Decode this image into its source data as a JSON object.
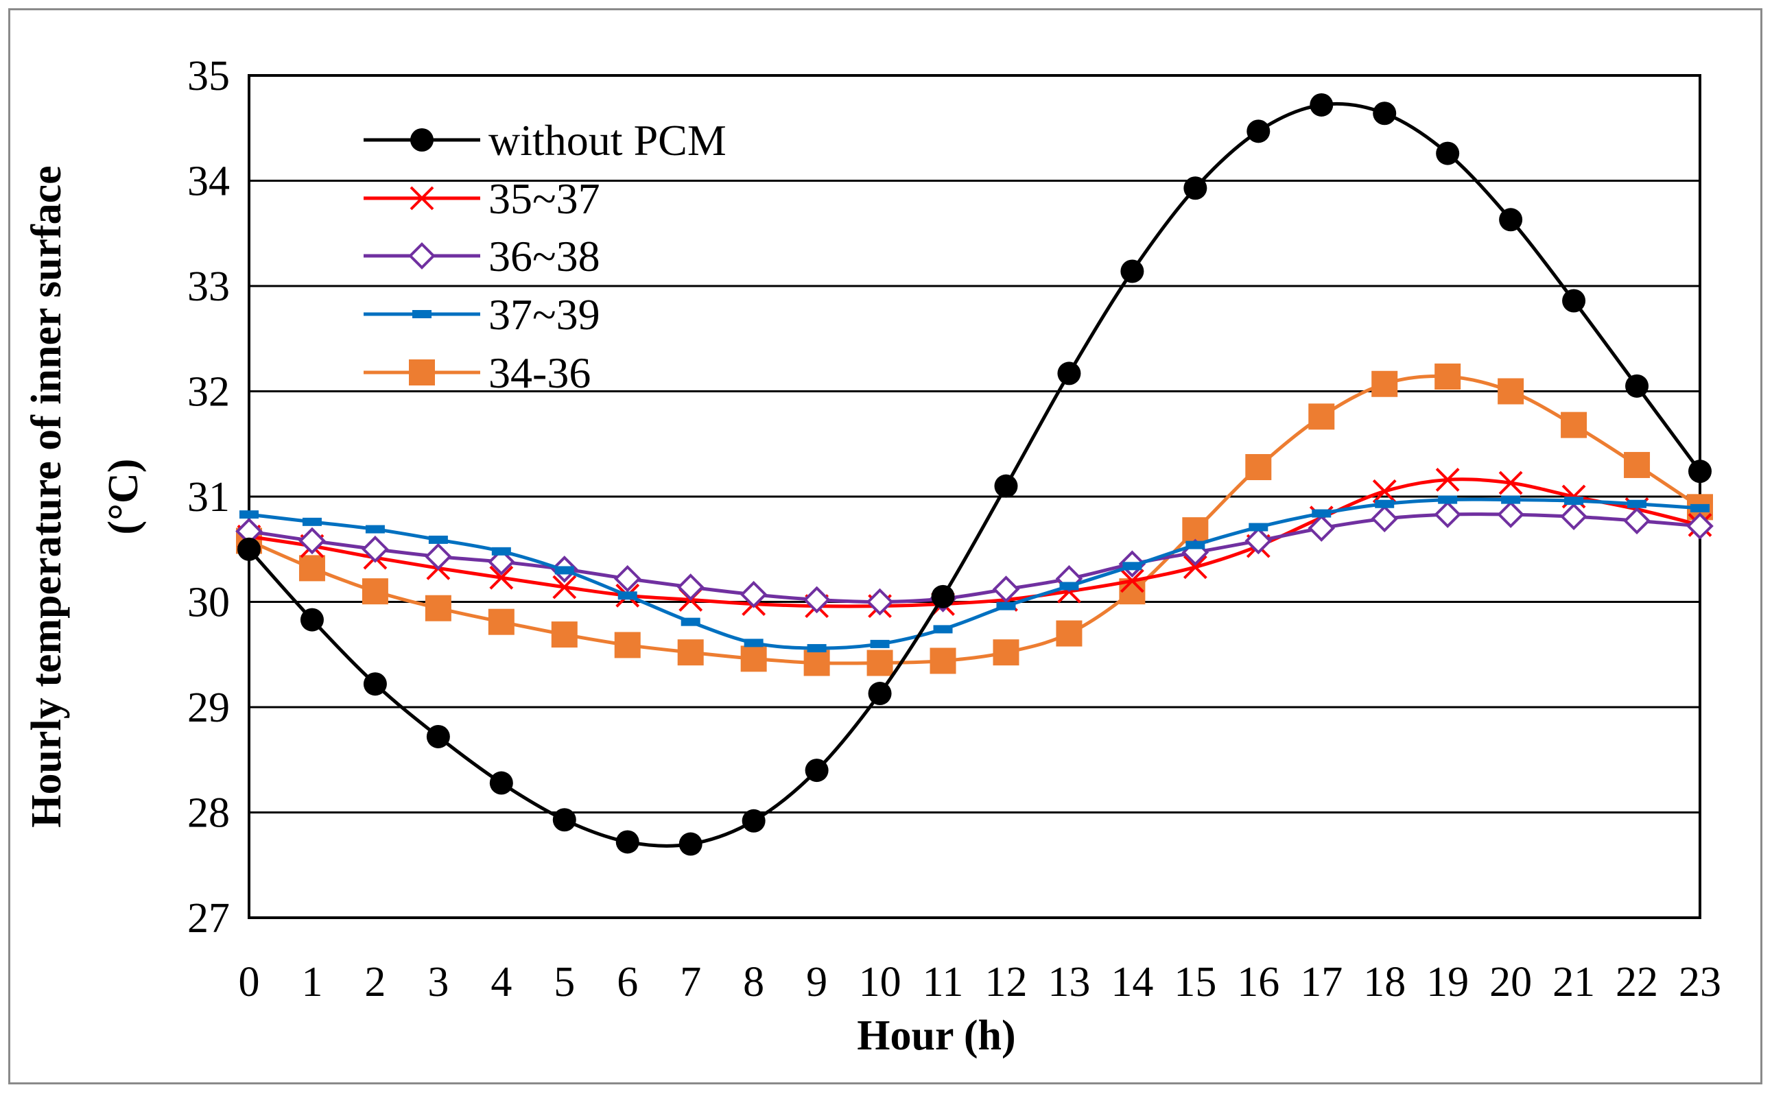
{
  "chart_data": {
    "type": "line",
    "title": "",
    "xlabel": "Hour (h)",
    "ylabel_line1": "Hourly temperature of inner surface",
    "ylabel_line2": "(°C)",
    "ylim": [
      27,
      35
    ],
    "yticks": [
      27,
      28,
      29,
      30,
      31,
      32,
      33,
      34,
      35
    ],
    "grid": true,
    "legend_position": "top-left",
    "categories": [
      0,
      1,
      2,
      3,
      4,
      5,
      6,
      7,
      8,
      9,
      10,
      11,
      12,
      13,
      14,
      15,
      16,
      17,
      18,
      19,
      20,
      21,
      22,
      23
    ],
    "series": [
      {
        "name": "without PCM",
        "color": "#000000",
        "marker": "circle",
        "values": [
          30.5,
          29.83,
          29.22,
          28.72,
          28.28,
          27.93,
          27.72,
          27.7,
          27.92,
          28.4,
          29.13,
          30.05,
          31.1,
          32.17,
          33.14,
          33.93,
          34.47,
          34.72,
          34.64,
          34.26,
          33.63,
          32.86,
          32.05,
          31.24
        ]
      },
      {
        "name": "35~37",
        "color": "#ff0000",
        "marker": "x",
        "values": [
          30.62,
          30.53,
          30.42,
          30.32,
          30.23,
          30.14,
          30.06,
          30.02,
          29.98,
          29.96,
          29.96,
          29.98,
          30.02,
          30.1,
          30.2,
          30.33,
          30.53,
          30.8,
          31.05,
          31.16,
          31.13,
          31.0,
          30.88,
          30.73
        ]
      },
      {
        "name": "36~38",
        "color": "#7030a0",
        "marker": "diamond",
        "values": [
          30.67,
          30.58,
          30.5,
          30.43,
          30.38,
          30.31,
          30.22,
          30.14,
          30.07,
          30.02,
          30.0,
          30.03,
          30.12,
          30.22,
          30.36,
          30.47,
          30.58,
          30.7,
          30.79,
          30.83,
          30.83,
          30.81,
          30.77,
          30.72
        ]
      },
      {
        "name": "37~39",
        "color": "#0070c0",
        "marker": "dash",
        "values": [
          30.83,
          30.76,
          30.69,
          30.59,
          30.48,
          30.3,
          30.06,
          29.81,
          29.61,
          29.56,
          29.6,
          29.74,
          29.96,
          30.15,
          30.34,
          30.54,
          30.71,
          30.84,
          30.93,
          30.97,
          30.97,
          30.96,
          30.93,
          30.89
        ]
      },
      {
        "name": "34-36",
        "color": "#ed7d31",
        "marker": "square",
        "values": [
          30.58,
          30.32,
          30.1,
          29.94,
          29.81,
          29.69,
          29.59,
          29.52,
          29.46,
          29.42,
          29.42,
          29.44,
          29.52,
          29.7,
          30.1,
          30.68,
          31.28,
          31.76,
          32.07,
          32.14,
          32.0,
          31.68,
          31.3,
          30.9
        ]
      }
    ]
  }
}
